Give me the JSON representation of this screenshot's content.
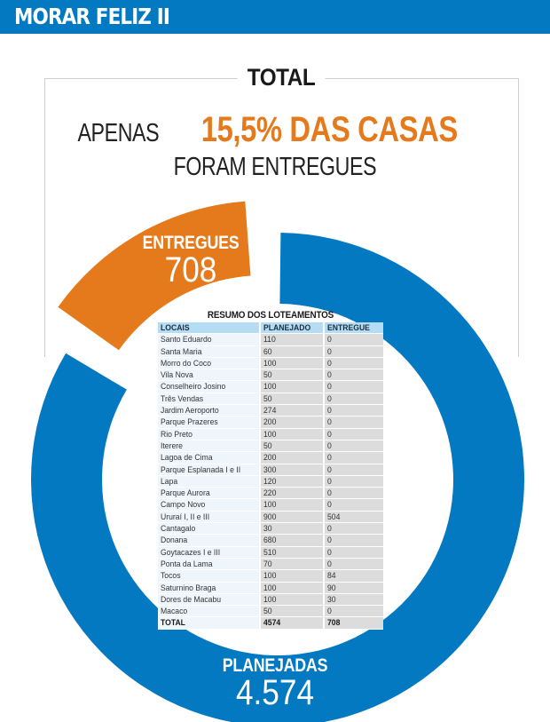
{
  "header": {
    "title": "MORAR FELIZ II"
  },
  "frame": {
    "label": "TOTAL"
  },
  "headline": {
    "prefix": "APENAS",
    "highlight": "15,5% DAS CASAS",
    "line2": "FORAM ENTREGUES"
  },
  "colors": {
    "brand_blue": "#0279c1",
    "orange": "#e57a1c",
    "table_header": "#b5dcf5"
  },
  "chart_data": {
    "type": "pie",
    "variant": "donut-exploded",
    "title": "TOTAL",
    "total": 4574,
    "series": [
      {
        "name": "ENTREGUES",
        "label": "ENTREGUES",
        "value": 708,
        "display": "708",
        "color": "#e57a1c"
      },
      {
        "name": "PLANEJADAS",
        "label": "PLANEJADAS",
        "value": 4574,
        "display": "4.574",
        "color": "#0279c1"
      }
    ],
    "share_delivered_percent": 15.5
  },
  "table": {
    "title": "RESUMO DOS LOTEAMENTOS",
    "columns": [
      "LOCAIS",
      "PLANEJADO",
      "ENTREGUE"
    ],
    "rows": [
      [
        "Santo Eduardo",
        "110",
        "0"
      ],
      [
        "Santa Maria",
        "60",
        "0"
      ],
      [
        "Morro do Coco",
        "100",
        "0"
      ],
      [
        "Vila Nova",
        "50",
        "0"
      ],
      [
        "Conselheiro Josino",
        "100",
        "0"
      ],
      [
        "Três Vendas",
        "50",
        "0"
      ],
      [
        "Jardim Aeroporto",
        "274",
        "0"
      ],
      [
        "Parque Prazeres",
        "200",
        "0"
      ],
      [
        "Rio Preto",
        "100",
        "0"
      ],
      [
        "Iterere",
        "50",
        "0"
      ],
      [
        "Lagoa de Cima",
        "200",
        "0"
      ],
      [
        "Parque Esplanada I e II",
        "300",
        "0"
      ],
      [
        "Lapa",
        "120",
        "0"
      ],
      [
        "Parque Aurora",
        "220",
        "0"
      ],
      [
        "Campo Novo",
        "100",
        "0"
      ],
      [
        "Ururaí I, II e III",
        "900",
        "504"
      ],
      [
        "Cantagalo",
        "30",
        "0"
      ],
      [
        "Donana",
        "680",
        "0"
      ],
      [
        "Goytacazes I e III",
        "510",
        "0"
      ],
      [
        "Ponta da Lama",
        "70",
        "0"
      ],
      [
        "Tocos",
        "100",
        "84"
      ],
      [
        "Saturnino Braga",
        "100",
        "90"
      ],
      [
        "Dores de Macabu",
        "100",
        "30"
      ],
      [
        "Macaco",
        "50",
        "0"
      ]
    ],
    "total": [
      "TOTAL",
      "4574",
      "708"
    ]
  }
}
